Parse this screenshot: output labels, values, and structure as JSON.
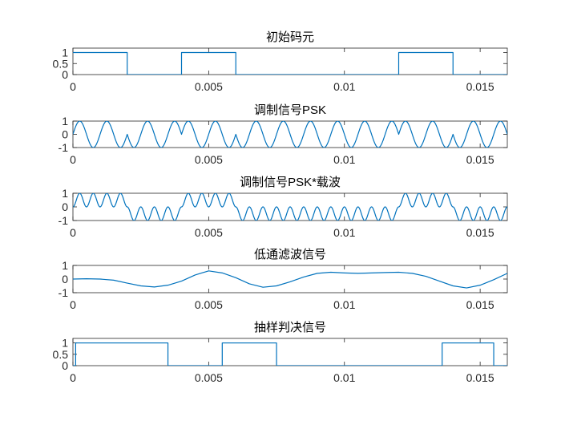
{
  "figure": {
    "background": "#ffffff",
    "line_color": "#0072bd"
  },
  "chart_data": [
    {
      "type": "line",
      "title": "初始码元",
      "xlim": [
        0,
        0.016
      ],
      "ylim": [
        0,
        1.2
      ],
      "xticks": [
        0,
        0.005,
        0.01,
        0.015
      ],
      "xtick_labels": [
        "0",
        "0.005",
        "0.01",
        "0.015"
      ],
      "yticks": [
        0,
        0.5,
        1
      ],
      "ytick_labels": [
        "0",
        "0.5",
        "1"
      ],
      "series": [
        {
          "x": [
            0,
            0.002,
            0.002,
            0.004,
            0.004,
            0.006,
            0.006,
            0.012,
            0.012,
            0.014,
            0.014,
            0.016
          ],
          "y": [
            1,
            1,
            0,
            0,
            1,
            1,
            0,
            0,
            1,
            1,
            0,
            0
          ]
        }
      ]
    },
    {
      "type": "line",
      "title": "调制信号PSK",
      "xlim": [
        0,
        0.016
      ],
      "ylim": [
        -1,
        1
      ],
      "xticks": [
        0,
        0.005,
        0.01,
        0.015
      ],
      "xtick_labels": [
        "0",
        "0.005",
        "0.01",
        "0.015"
      ],
      "yticks": [
        -1,
        0,
        1
      ],
      "ytick_labels": [
        "-1",
        "0",
        "1"
      ],
      "series": [
        {
          "formula": "sin(2*pi*1000*t + pi*(1-b(t)))",
          "carrier_hz": 1000,
          "bits": [
            1,
            0,
            1,
            0,
            0,
            0,
            1,
            0
          ],
          "bit_duration": 0.002
        }
      ]
    },
    {
      "type": "line",
      "title": "调制信号PSK*载波",
      "xlim": [
        0,
        0.016
      ],
      "ylim": [
        -1,
        1
      ],
      "xticks": [
        0,
        0.005,
        0.01,
        0.015
      ],
      "xtick_labels": [
        "0",
        "0.005",
        "0.01",
        "0.015"
      ],
      "yticks": [
        -1,
        0,
        1
      ],
      "ytick_labels": [
        "-1",
        "0",
        "1"
      ],
      "series": [
        {
          "formula": "psk(t) * sin(2*pi*1000*t)",
          "carrier_hz": 1000,
          "bits": [
            1,
            0,
            1,
            0,
            0,
            0,
            1,
            0
          ],
          "bit_duration": 0.002
        }
      ]
    },
    {
      "type": "line",
      "title": "低通滤波信号",
      "xlim": [
        0,
        0.016
      ],
      "ylim": [
        -1,
        1
      ],
      "xticks": [
        0,
        0.005,
        0.01,
        0.015
      ],
      "xtick_labels": [
        "0",
        "0.005",
        "0.01",
        "0.015"
      ],
      "yticks": [
        -1,
        0,
        1
      ],
      "ytick_labels": [
        "-1",
        "0",
        "1"
      ],
      "series": [
        {
          "x": [
            0,
            0.0005,
            0.001,
            0.0015,
            0.002,
            0.0025,
            0.003,
            0.0035,
            0.004,
            0.0045,
            0.005,
            0.0055,
            0.006,
            0.0065,
            0.007,
            0.0075,
            0.008,
            0.0085,
            0.009,
            0.0095,
            0.01,
            0.0105,
            0.011,
            0.0115,
            0.012,
            0.0125,
            0.013,
            0.0135,
            0.014,
            0.0145,
            0.015,
            0.0155,
            0.016
          ],
          "y": [
            0,
            0.02,
            0,
            -0.08,
            -0.3,
            -0.5,
            -0.58,
            -0.45,
            -0.15,
            0.3,
            0.6,
            0.45,
            0.1,
            -0.35,
            -0.6,
            -0.5,
            -0.2,
            0.15,
            0.42,
            0.5,
            0.45,
            0.42,
            0.45,
            0.48,
            0.5,
            0.42,
            0.2,
            -0.15,
            -0.5,
            -0.65,
            -0.45,
            -0.05,
            0.42
          ]
        }
      ]
    },
    {
      "type": "line",
      "title": "抽样判决信号",
      "xlim": [
        0,
        0.016
      ],
      "ylim": [
        0,
        1.2
      ],
      "xticks": [
        0,
        0.005,
        0.01,
        0.015
      ],
      "xtick_labels": [
        "0",
        "0.005",
        "0.01",
        "0.015"
      ],
      "yticks": [
        0,
        0.5,
        1
      ],
      "ytick_labels": [
        "0",
        "0.5",
        "1"
      ],
      "series": [
        {
          "x": [
            0,
            0.0001,
            0.0001,
            0.0035,
            0.0035,
            0.0055,
            0.0055,
            0.0075,
            0.0075,
            0.0136,
            0.0136,
            0.0155,
            0.0155,
            0.016
          ],
          "y": [
            0,
            0,
            1,
            1,
            0,
            0,
            1,
            1,
            0,
            0,
            1,
            1,
            0,
            0
          ]
        }
      ]
    }
  ]
}
